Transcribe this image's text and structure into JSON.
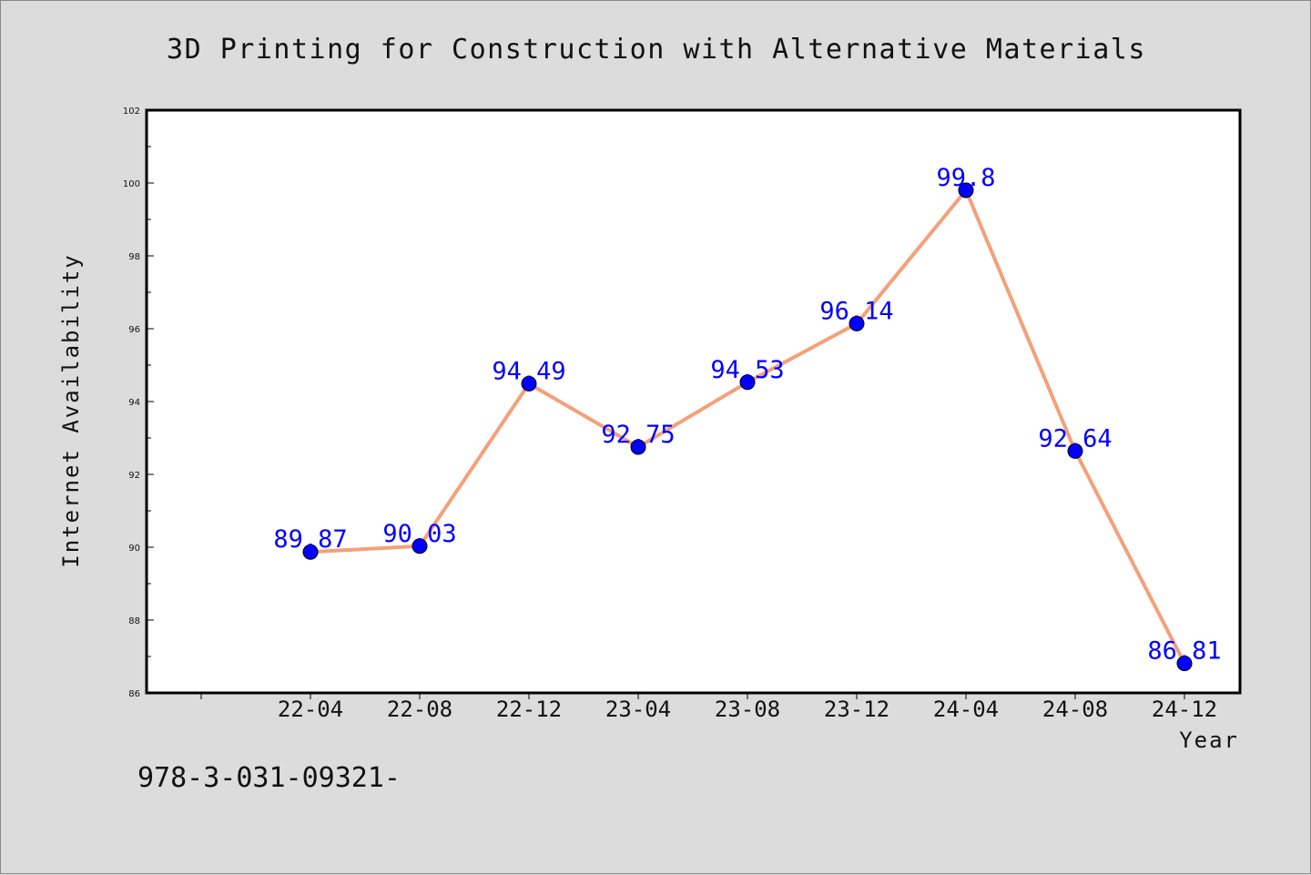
{
  "chart_data": {
    "type": "line",
    "title": "3D Printing for Construction with Alternative Materials",
    "xlabel": "Year",
    "ylabel": "Internet Availability",
    "categories": [
      "22-04",
      "22-08",
      "22-12",
      "23-04",
      "23-08",
      "23-12",
      "24-04",
      "24-08",
      "24-12"
    ],
    "series": [
      {
        "values": [
          89.87,
          90.03,
          94.49,
          92.75,
          94.53,
          96.14,
          99.8,
          92.64,
          86.81
        ],
        "labels": [
          "89.87",
          "90.03",
          "94.49",
          "92.75",
          "94.53",
          "96.14",
          "99.8",
          "92.64",
          "86.81"
        ]
      }
    ],
    "ylim": [
      86,
      102
    ],
    "yticks": [
      86,
      88,
      90,
      92,
      94,
      96,
      98,
      100,
      102
    ],
    "ytick_labels": [
      "86",
      "88",
      "90",
      "92",
      "94",
      "96",
      "98",
      "100",
      "102"
    ],
    "grid": false,
    "line_color": "#f4a07a",
    "marker_color": "#0000ff",
    "label_color": "#0000ff"
  },
  "footer": {
    "isbn": "978-3-031-09321-"
  }
}
